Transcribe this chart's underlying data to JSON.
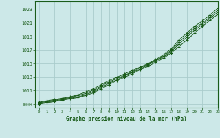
{
  "title": "Graphe pression niveau de la mer (hPa)",
  "bg_color": "#cce8e8",
  "grid_color": "#aacccc",
  "line_color": "#1a5c1a",
  "marker_color": "#1a5c1a",
  "xlim": [
    -0.5,
    23
  ],
  "ylim": [
    1008.5,
    1024.2
  ],
  "yticks": [
    1009,
    1011,
    1013,
    1015,
    1017,
    1019,
    1021,
    1023
  ],
  "xticks": [
    0,
    1,
    2,
    3,
    4,
    5,
    6,
    7,
    8,
    9,
    10,
    11,
    12,
    13,
    14,
    15,
    16,
    17,
    18,
    19,
    20,
    21,
    22,
    23
  ],
  "hours": [
    0,
    1,
    2,
    3,
    4,
    5,
    6,
    7,
    8,
    9,
    10,
    11,
    12,
    13,
    14,
    15,
    16,
    17,
    18,
    19,
    20,
    21,
    22,
    23
  ],
  "series1": [
    1009.3,
    1009.5,
    1009.7,
    1009.9,
    1010.1,
    1010.4,
    1010.8,
    1011.3,
    1011.9,
    1012.5,
    1013.0,
    1013.5,
    1014.0,
    1014.5,
    1015.0,
    1015.6,
    1016.3,
    1017.2,
    1018.5,
    1019.5,
    1020.5,
    1021.3,
    1022.2,
    1023.2
  ],
  "series2": [
    1009.2,
    1009.4,
    1009.6,
    1009.8,
    1010.0,
    1010.3,
    1010.6,
    1011.1,
    1011.7,
    1012.3,
    1012.8,
    1013.3,
    1013.8,
    1014.4,
    1014.9,
    1015.5,
    1016.1,
    1017.0,
    1018.2,
    1019.2,
    1020.2,
    1021.0,
    1021.9,
    1022.9
  ],
  "series3": [
    1009.1,
    1009.3,
    1009.5,
    1009.7,
    1009.9,
    1010.1,
    1010.4,
    1010.9,
    1011.5,
    1012.1,
    1012.6,
    1013.2,
    1013.7,
    1014.2,
    1014.8,
    1015.4,
    1016.0,
    1016.8,
    1017.9,
    1018.9,
    1019.9,
    1020.8,
    1021.7,
    1022.6
  ],
  "series4": [
    1009.0,
    1009.2,
    1009.4,
    1009.6,
    1009.8,
    1010.0,
    1010.3,
    1010.7,
    1011.3,
    1011.9,
    1012.5,
    1013.0,
    1013.5,
    1014.1,
    1014.6,
    1015.2,
    1015.8,
    1016.6,
    1017.5,
    1018.5,
    1019.5,
    1020.5,
    1021.4,
    1022.3
  ]
}
